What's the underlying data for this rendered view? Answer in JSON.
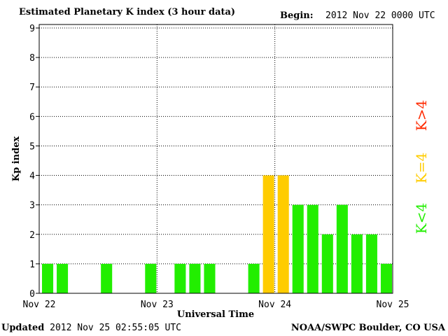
{
  "header": {
    "title": "Estimated Planetary K index (3 hour data)",
    "begin_label": "Begin:",
    "begin_value": "2012 Nov 22 0000 UTC"
  },
  "footer": {
    "updated_label": "Updated",
    "updated_value": "2012 Nov 25 02:55:05 UTC",
    "credit": "NOAA/SWPC Boulder, CO USA"
  },
  "legend": {
    "items": [
      {
        "label": "K>4",
        "color": "#ff2a00"
      },
      {
        "label": "K=4",
        "color": "#ffcc00"
      },
      {
        "label": "K<4",
        "color": "#22ee00"
      }
    ]
  },
  "colors": {
    "below": "#22ee00",
    "equal": "#ffcc00",
    "above": "#ff2a00"
  },
  "chart_data": {
    "type": "bar",
    "title": "Estimated Planetary K index (3 hour data)",
    "xlabel": "Universal Time",
    "ylabel": "Kp index",
    "ylim": [
      0,
      9
    ],
    "yticks": [
      "0",
      "1",
      "2",
      "3",
      "4",
      "5",
      "6",
      "7",
      "8",
      "9"
    ],
    "xticks": [
      "Nov 22",
      "Nov 23",
      "Nov 24",
      "Nov 25"
    ],
    "x": [
      "2012-11-22 00:00",
      "2012-11-22 03:00",
      "2012-11-22 06:00",
      "2012-11-22 09:00",
      "2012-11-22 12:00",
      "2012-11-22 15:00",
      "2012-11-22 18:00",
      "2012-11-22 21:00",
      "2012-11-23 00:00",
      "2012-11-23 03:00",
      "2012-11-23 06:00",
      "2012-11-23 09:00",
      "2012-11-23 12:00",
      "2012-11-23 15:00",
      "2012-11-23 18:00",
      "2012-11-23 21:00",
      "2012-11-24 00:00",
      "2012-11-24 03:00",
      "2012-11-24 06:00",
      "2012-11-24 09:00",
      "2012-11-24 12:00",
      "2012-11-24 15:00",
      "2012-11-24 18:00",
      "2012-11-24 21:00"
    ],
    "values": [
      1,
      1,
      0,
      0,
      1,
      0,
      0,
      1,
      0,
      1,
      1,
      1,
      0,
      0,
      1,
      4,
      4,
      3,
      3,
      2,
      3,
      2,
      2,
      1
    ],
    "grid": true
  }
}
